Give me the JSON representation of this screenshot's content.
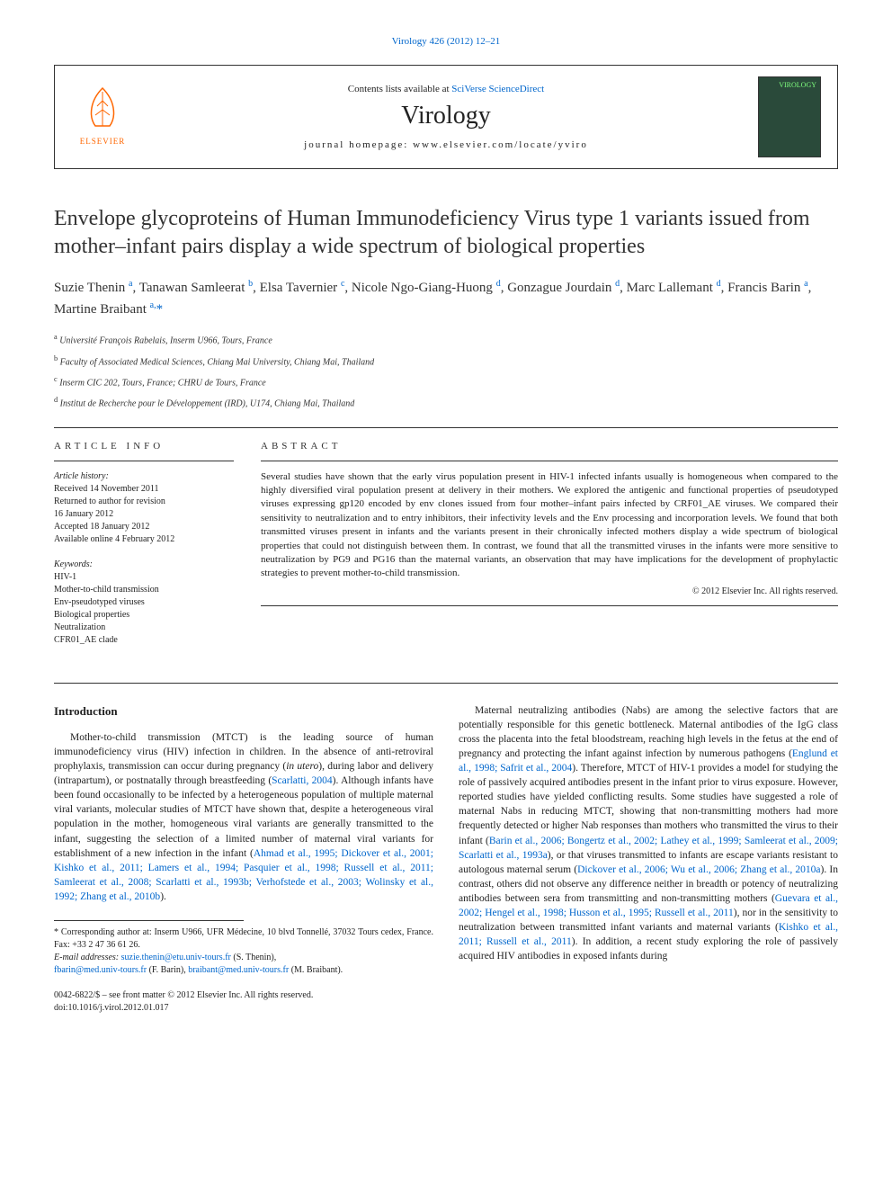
{
  "topline": "Virology 426 (2012) 12–21",
  "header": {
    "contents_prefix": "Contents lists available at ",
    "contents_link": "SciVerse ScienceDirect",
    "journal": "Virology",
    "homepage_prefix": "journal homepage: ",
    "homepage": "www.elsevier.com/locate/yviro",
    "elsevier": "ELSEVIER",
    "cover_label": "VIROLOGY"
  },
  "title": "Envelope glycoproteins of Human Immunodeficiency Virus type 1 variants issued from mother–infant pairs display a wide spectrum of biological properties",
  "authors_html": "Suzie Thenin <sup>a</sup>, Tanawan Samleerat <sup>b</sup>, Elsa Tavernier <sup>c</sup>, Nicole Ngo-Giang-Huong <sup>d</sup>, Gonzague Jourdain <sup>d</sup>, Marc Lallemant <sup>d</sup>, Francis Barin <sup>a</sup>, Martine Braibant <sup>a,</sup><span class='star'>*</span>",
  "affiliations": [
    {
      "sup": "a",
      "text": "Université François Rabelais, Inserm U966, Tours, France"
    },
    {
      "sup": "b",
      "text": "Faculty of Associated Medical Sciences, Chiang Mai University, Chiang Mai, Thailand"
    },
    {
      "sup": "c",
      "text": "Inserm CIC 202, Tours, France; CHRU de Tours, France"
    },
    {
      "sup": "d",
      "text": "Institut de Recherche pour le Développement (IRD), U174, Chiang Mai, Thailand"
    }
  ],
  "article_info_label": "ARTICLE INFO",
  "abstract_label": "ABSTRACT",
  "history": {
    "hdr": "Article history:",
    "lines": [
      "Received 14 November 2011",
      "Returned to author for revision",
      "16 January 2012",
      "Accepted 18 January 2012",
      "Available online 4 February 2012"
    ]
  },
  "keywords": {
    "hdr": "Keywords:",
    "items": [
      "HIV-1",
      "Mother-to-child transmission",
      "Env-pseudotyped viruses",
      "Biological properties",
      "Neutralization",
      "CFR01_AE clade"
    ]
  },
  "abstract": "Several studies have shown that the early virus population present in HIV-1 infected infants usually is homogeneous when compared to the highly diversified viral population present at delivery in their mothers. We explored the antigenic and functional properties of pseudotyped viruses expressing gp120 encoded by env clones issued from four mother–infant pairs infected by CRF01_AE viruses. We compared their sensitivity to neutralization and to entry inhibitors, their infectivity levels and the Env processing and incorporation levels. We found that both transmitted viruses present in infants and the variants present in their chronically infected mothers display a wide spectrum of biological properties that could not distinguish between them. In contrast, we found that all the transmitted viruses in the infants were more sensitive to neutralization by PG9 and PG16 than the maternal variants, an observation that may have implications for the development of prophylactic strategies to prevent mother-to-child transmission.",
  "abstract_copyright": "© 2012 Elsevier Inc. All rights reserved.",
  "introduction_heading": "Introduction",
  "col1_para": "Mother-to-child transmission (MTCT) is the leading source of human immunodeficiency virus (HIV) infection in children. In the absence of anti-retroviral prophylaxis, transmission can occur during pregnancy (in utero), during labor and delivery (intrapartum), or postnatally through breastfeeding (Scarlatti, 2004). Although infants have been found occasionally to be infected by a heterogeneous population of multiple maternal viral variants, molecular studies of MTCT have shown that, despite a heterogeneous viral population in the mother, homogeneous viral variants are generally transmitted to the infant, suggesting the selection of a limited number of maternal viral variants for establishment of a new infection in the infant (Ahmad et al., 1995; Dickover et al., 2001; Kishko et al., 2011; Lamers et al., 1994; Pasquier et al., 1998; Russell et al., 2011; Samleerat et al., 2008; Scarlatti et al., 1993b; Verhofstede et al., 2003; Wolinsky et al., 1992; Zhang et al., 2010b).",
  "col2_para": "Maternal neutralizing antibodies (Nabs) are among the selective factors that are potentially responsible for this genetic bottleneck. Maternal antibodies of the IgG class cross the placenta into the fetal bloodstream, reaching high levels in the fetus at the end of pregnancy and protecting the infant against infection by numerous pathogens (Englund et al., 1998; Safrit et al., 2004). Therefore, MTCT of HIV-1 provides a model for studying the role of passively acquired antibodies present in the infant prior to virus exposure. However, reported studies have yielded conflicting results. Some studies have suggested a role of maternal Nabs in reducing MTCT, showing that non-transmitting mothers had more frequently detected or higher Nab responses than mothers who transmitted the virus to their infant (Barin et al., 2006; Bongertz et al., 2002; Lathey et al., 1999; Samleerat et al., 2009; Scarlatti et al., 1993a), or that viruses transmitted to infants are escape variants resistant to autologous maternal serum (Dickover et al., 2006; Wu et al., 2006; Zhang et al., 2010a). In contrast, others did not observe any difference neither in breadth or potency of neutralizing antibodies between sera from transmitting and non-transmitting mothers (Guevara et al., 2002; Hengel et al., 1998; Husson et al., 1995; Russell et al., 2011), nor in the sensitivity to neutralization between transmitted infant variants and maternal variants (Kishko et al., 2011; Russell et al., 2011). In addition, a recent study exploring the role of passively acquired HIV antibodies in exposed infants during",
  "footnote": {
    "corr": "* Corresponding author at: Inserm U966, UFR Médecine, 10 blvd Tonnellé, 37032 Tours cedex, France. Fax: +33 2 47 36 61 26.",
    "email_label": "E-mail addresses: ",
    "emails": [
      {
        "addr": "suzie.thenin@etu.univ-tours.fr",
        "who": " (S. Thenin),"
      },
      {
        "addr": "fbarin@med.univ-tours.fr",
        "who": " (F. Barin), "
      },
      {
        "addr": "braibant@med.univ-tours.fr",
        "who": " (M. Braibant)."
      }
    ]
  },
  "bottom": {
    "line1": "0042-6822/$ – see front matter © 2012 Elsevier Inc. All rights reserved.",
    "line2": "doi:10.1016/j.virol.2012.01.017"
  },
  "colors": {
    "link": "#0066cc",
    "elsevier_orange": "#ff6600",
    "cover_bg": "#2a4a3a",
    "cover_text": "#7fff7f"
  }
}
